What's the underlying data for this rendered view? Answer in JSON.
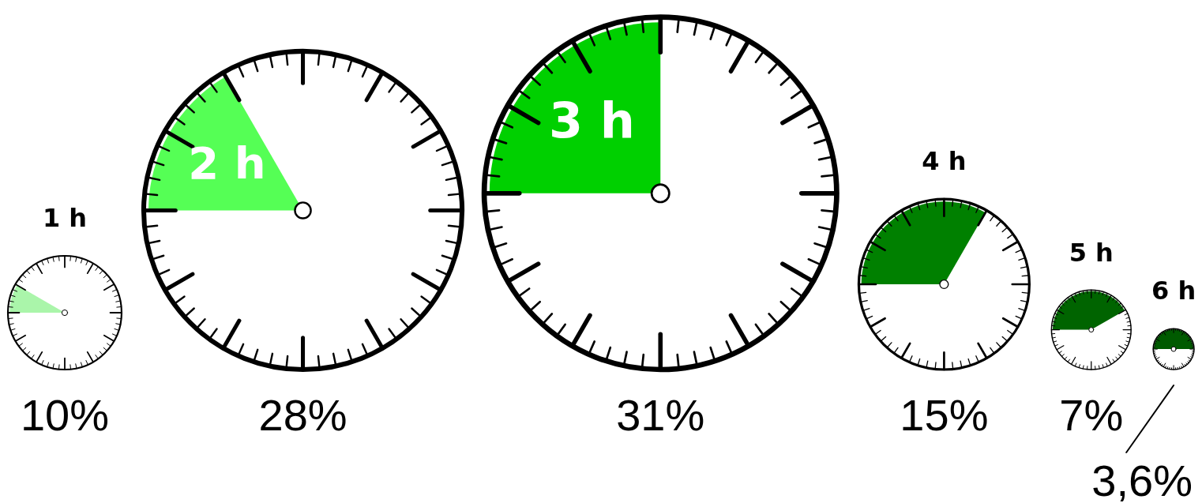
{
  "chart_data": {
    "type": "other",
    "categories": [
      "1 h",
      "2 h",
      "3 h",
      "4 h",
      "5 h",
      "6 h"
    ],
    "values": [
      10,
      28,
      31,
      15,
      7,
      3.6
    ],
    "value_labels": [
      "10%",
      "28%",
      "31%",
      "15%",
      "7%",
      "3,6%"
    ],
    "colors": [
      "#aaf5aa",
      "#55ff55",
      "#00d000",
      "#008000",
      "#006400",
      "#005a00"
    ]
  }
}
